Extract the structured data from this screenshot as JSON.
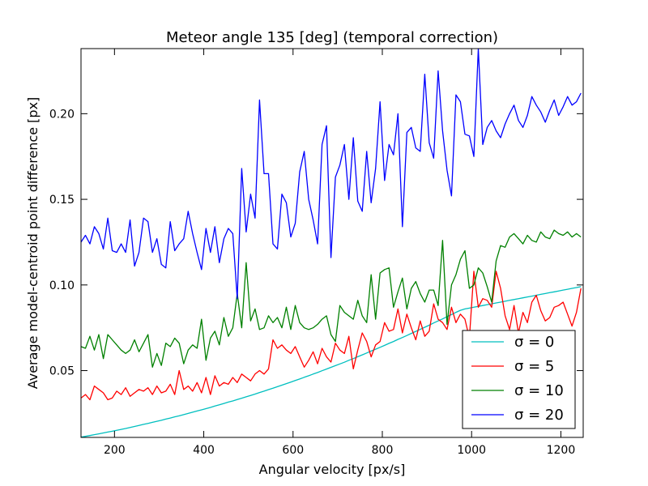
{
  "chart_data": {
    "type": "line",
    "title": "Meteor angle 135 [deg] (temporal correction)",
    "xlabel": "Angular velocity [px/s]",
    "ylabel": "Average model-centroid point difference [px]",
    "xlim": [
      125,
      1250
    ],
    "ylim": [
      0.011,
      0.238
    ],
    "x_ticks": [
      200,
      400,
      600,
      800,
      1000,
      1200
    ],
    "y_ticks": [
      0.05,
      0.1,
      0.15,
      0.2
    ],
    "y_tick_labels": [
      "0.05",
      "0.10",
      "0.15",
      "0.20"
    ],
    "grid": false,
    "legend_position": "lower-right",
    "x_start": 125,
    "x_step": 10,
    "series": [
      {
        "name": "σ = 0",
        "color": "#00bfbf",
        "values": [
          0.0112,
          0.0116,
          0.0121,
          0.0126,
          0.0131,
          0.0136,
          0.0141,
          0.0146,
          0.0151,
          0.0157,
          0.0162,
          0.0168,
          0.0174,
          0.018,
          0.0186,
          0.0192,
          0.0198,
          0.0204,
          0.021,
          0.0217,
          0.0223,
          0.023,
          0.0236,
          0.0243,
          0.025,
          0.0257,
          0.0264,
          0.0271,
          0.0278,
          0.0285,
          0.0293,
          0.03,
          0.0308,
          0.0316,
          0.0323,
          0.0331,
          0.0339,
          0.0347,
          0.0355,
          0.0363,
          0.0372,
          0.038,
          0.0389,
          0.0397,
          0.0406,
          0.0415,
          0.0424,
          0.0433,
          0.0442,
          0.0451,
          0.0461,
          0.047,
          0.048,
          0.0489,
          0.0499,
          0.0509,
          0.0519,
          0.0529,
          0.0539,
          0.0549,
          0.056,
          0.057,
          0.0581,
          0.0592,
          0.0603,
          0.0614,
          0.0625,
          0.0636,
          0.0647,
          0.0659,
          0.067,
          0.0682,
          0.0693,
          0.0705,
          0.0717,
          0.0729,
          0.0741,
          0.0753,
          0.0765,
          0.0778,
          0.079,
          0.0802,
          0.0815,
          0.0827,
          0.084,
          0.0852,
          0.086,
          0.0865,
          0.087,
          0.0875,
          0.088,
          0.0885,
          0.089,
          0.0895,
          0.09,
          0.0905,
          0.091,
          0.0915,
          0.092,
          0.0925,
          0.093,
          0.0935,
          0.094,
          0.0945,
          0.095,
          0.0955,
          0.096,
          0.0965,
          0.097,
          0.0975,
          0.098,
          0.0985,
          0.099
        ]
      },
      {
        "name": "σ = 5",
        "color": "#ff0000",
        "values": [
          0.034,
          0.036,
          0.033,
          0.041,
          0.039,
          0.037,
          0.033,
          0.034,
          0.038,
          0.036,
          0.04,
          0.035,
          0.037,
          0.039,
          0.038,
          0.04,
          0.036,
          0.041,
          0.037,
          0.038,
          0.042,
          0.036,
          0.05,
          0.039,
          0.041,
          0.038,
          0.043,
          0.037,
          0.046,
          0.036,
          0.047,
          0.041,
          0.043,
          0.042,
          0.046,
          0.043,
          0.048,
          0.046,
          0.044,
          0.048,
          0.05,
          0.048,
          0.051,
          0.068,
          0.063,
          0.065,
          0.062,
          0.06,
          0.064,
          0.058,
          0.052,
          0.056,
          0.061,
          0.054,
          0.063,
          0.058,
          0.055,
          0.066,
          0.062,
          0.06,
          0.07,
          0.051,
          0.062,
          0.072,
          0.067,
          0.058,
          0.065,
          0.067,
          0.078,
          0.073,
          0.074,
          0.086,
          0.072,
          0.083,
          0.075,
          0.068,
          0.079,
          0.07,
          0.073,
          0.089,
          0.08,
          0.078,
          0.074,
          0.087,
          0.078,
          0.083,
          0.08,
          0.069,
          0.108,
          0.087,
          0.092,
          0.091,
          0.087,
          0.108,
          0.098,
          0.082,
          0.074,
          0.088,
          0.072,
          0.084,
          0.078,
          0.09,
          0.094,
          0.085,
          0.079,
          0.081,
          0.087,
          0.088,
          0.09,
          0.083,
          0.076,
          0.084,
          0.098
        ]
      },
      {
        "name": "σ = 10",
        "color": "#008000",
        "values": [
          0.064,
          0.063,
          0.07,
          0.062,
          0.071,
          0.057,
          0.071,
          0.068,
          0.065,
          0.062,
          0.06,
          0.062,
          0.068,
          0.061,
          0.066,
          0.071,
          0.052,
          0.06,
          0.053,
          0.066,
          0.064,
          0.069,
          0.066,
          0.054,
          0.062,
          0.065,
          0.063,
          0.08,
          0.056,
          0.069,
          0.073,
          0.065,
          0.081,
          0.07,
          0.075,
          0.095,
          0.075,
          0.113,
          0.079,
          0.086,
          0.074,
          0.075,
          0.082,
          0.078,
          0.081,
          0.075,
          0.087,
          0.074,
          0.088,
          0.078,
          0.075,
          0.074,
          0.075,
          0.077,
          0.08,
          0.082,
          0.071,
          0.067,
          0.088,
          0.084,
          0.082,
          0.08,
          0.091,
          0.082,
          0.078,
          0.106,
          0.08,
          0.107,
          0.109,
          0.11,
          0.087,
          0.096,
          0.104,
          0.086,
          0.098,
          0.102,
          0.095,
          0.09,
          0.097,
          0.097,
          0.088,
          0.126,
          0.077,
          0.1,
          0.106,
          0.115,
          0.12,
          0.098,
          0.1,
          0.11,
          0.107,
          0.099,
          0.09,
          0.114,
          0.123,
          0.122,
          0.128,
          0.13,
          0.127,
          0.124,
          0.129,
          0.126,
          0.125,
          0.131,
          0.128,
          0.127,
          0.132,
          0.13,
          0.129,
          0.131,
          0.128,
          0.13,
          0.128
        ]
      },
      {
        "name": "σ = 20",
        "color": "#0000ff",
        "values": [
          0.125,
          0.129,
          0.124,
          0.134,
          0.13,
          0.121,
          0.139,
          0.12,
          0.119,
          0.124,
          0.119,
          0.138,
          0.111,
          0.119,
          0.139,
          0.137,
          0.119,
          0.127,
          0.112,
          0.11,
          0.137,
          0.12,
          0.124,
          0.127,
          0.143,
          0.13,
          0.119,
          0.109,
          0.133,
          0.119,
          0.134,
          0.113,
          0.127,
          0.133,
          0.13,
          0.092,
          0.168,
          0.131,
          0.153,
          0.139,
          0.208,
          0.165,
          0.165,
          0.124,
          0.121,
          0.153,
          0.148,
          0.128,
          0.136,
          0.166,
          0.178,
          0.15,
          0.138,
          0.124,
          0.182,
          0.193,
          0.116,
          0.163,
          0.17,
          0.182,
          0.15,
          0.186,
          0.149,
          0.143,
          0.178,
          0.148,
          0.168,
          0.207,
          0.161,
          0.182,
          0.176,
          0.2,
          0.134,
          0.189,
          0.192,
          0.18,
          0.178,
          0.223,
          0.183,
          0.174,
          0.225,
          0.19,
          0.167,
          0.152,
          0.211,
          0.207,
          0.188,
          0.187,
          0.175,
          0.238,
          0.182,
          0.192,
          0.196,
          0.19,
          0.186,
          0.194,
          0.2,
          0.205,
          0.196,
          0.192,
          0.199,
          0.21,
          0.205,
          0.201,
          0.195,
          0.202,
          0.208,
          0.199,
          0.204,
          0.21,
          0.205,
          0.207,
          0.212
        ]
      }
    ]
  }
}
